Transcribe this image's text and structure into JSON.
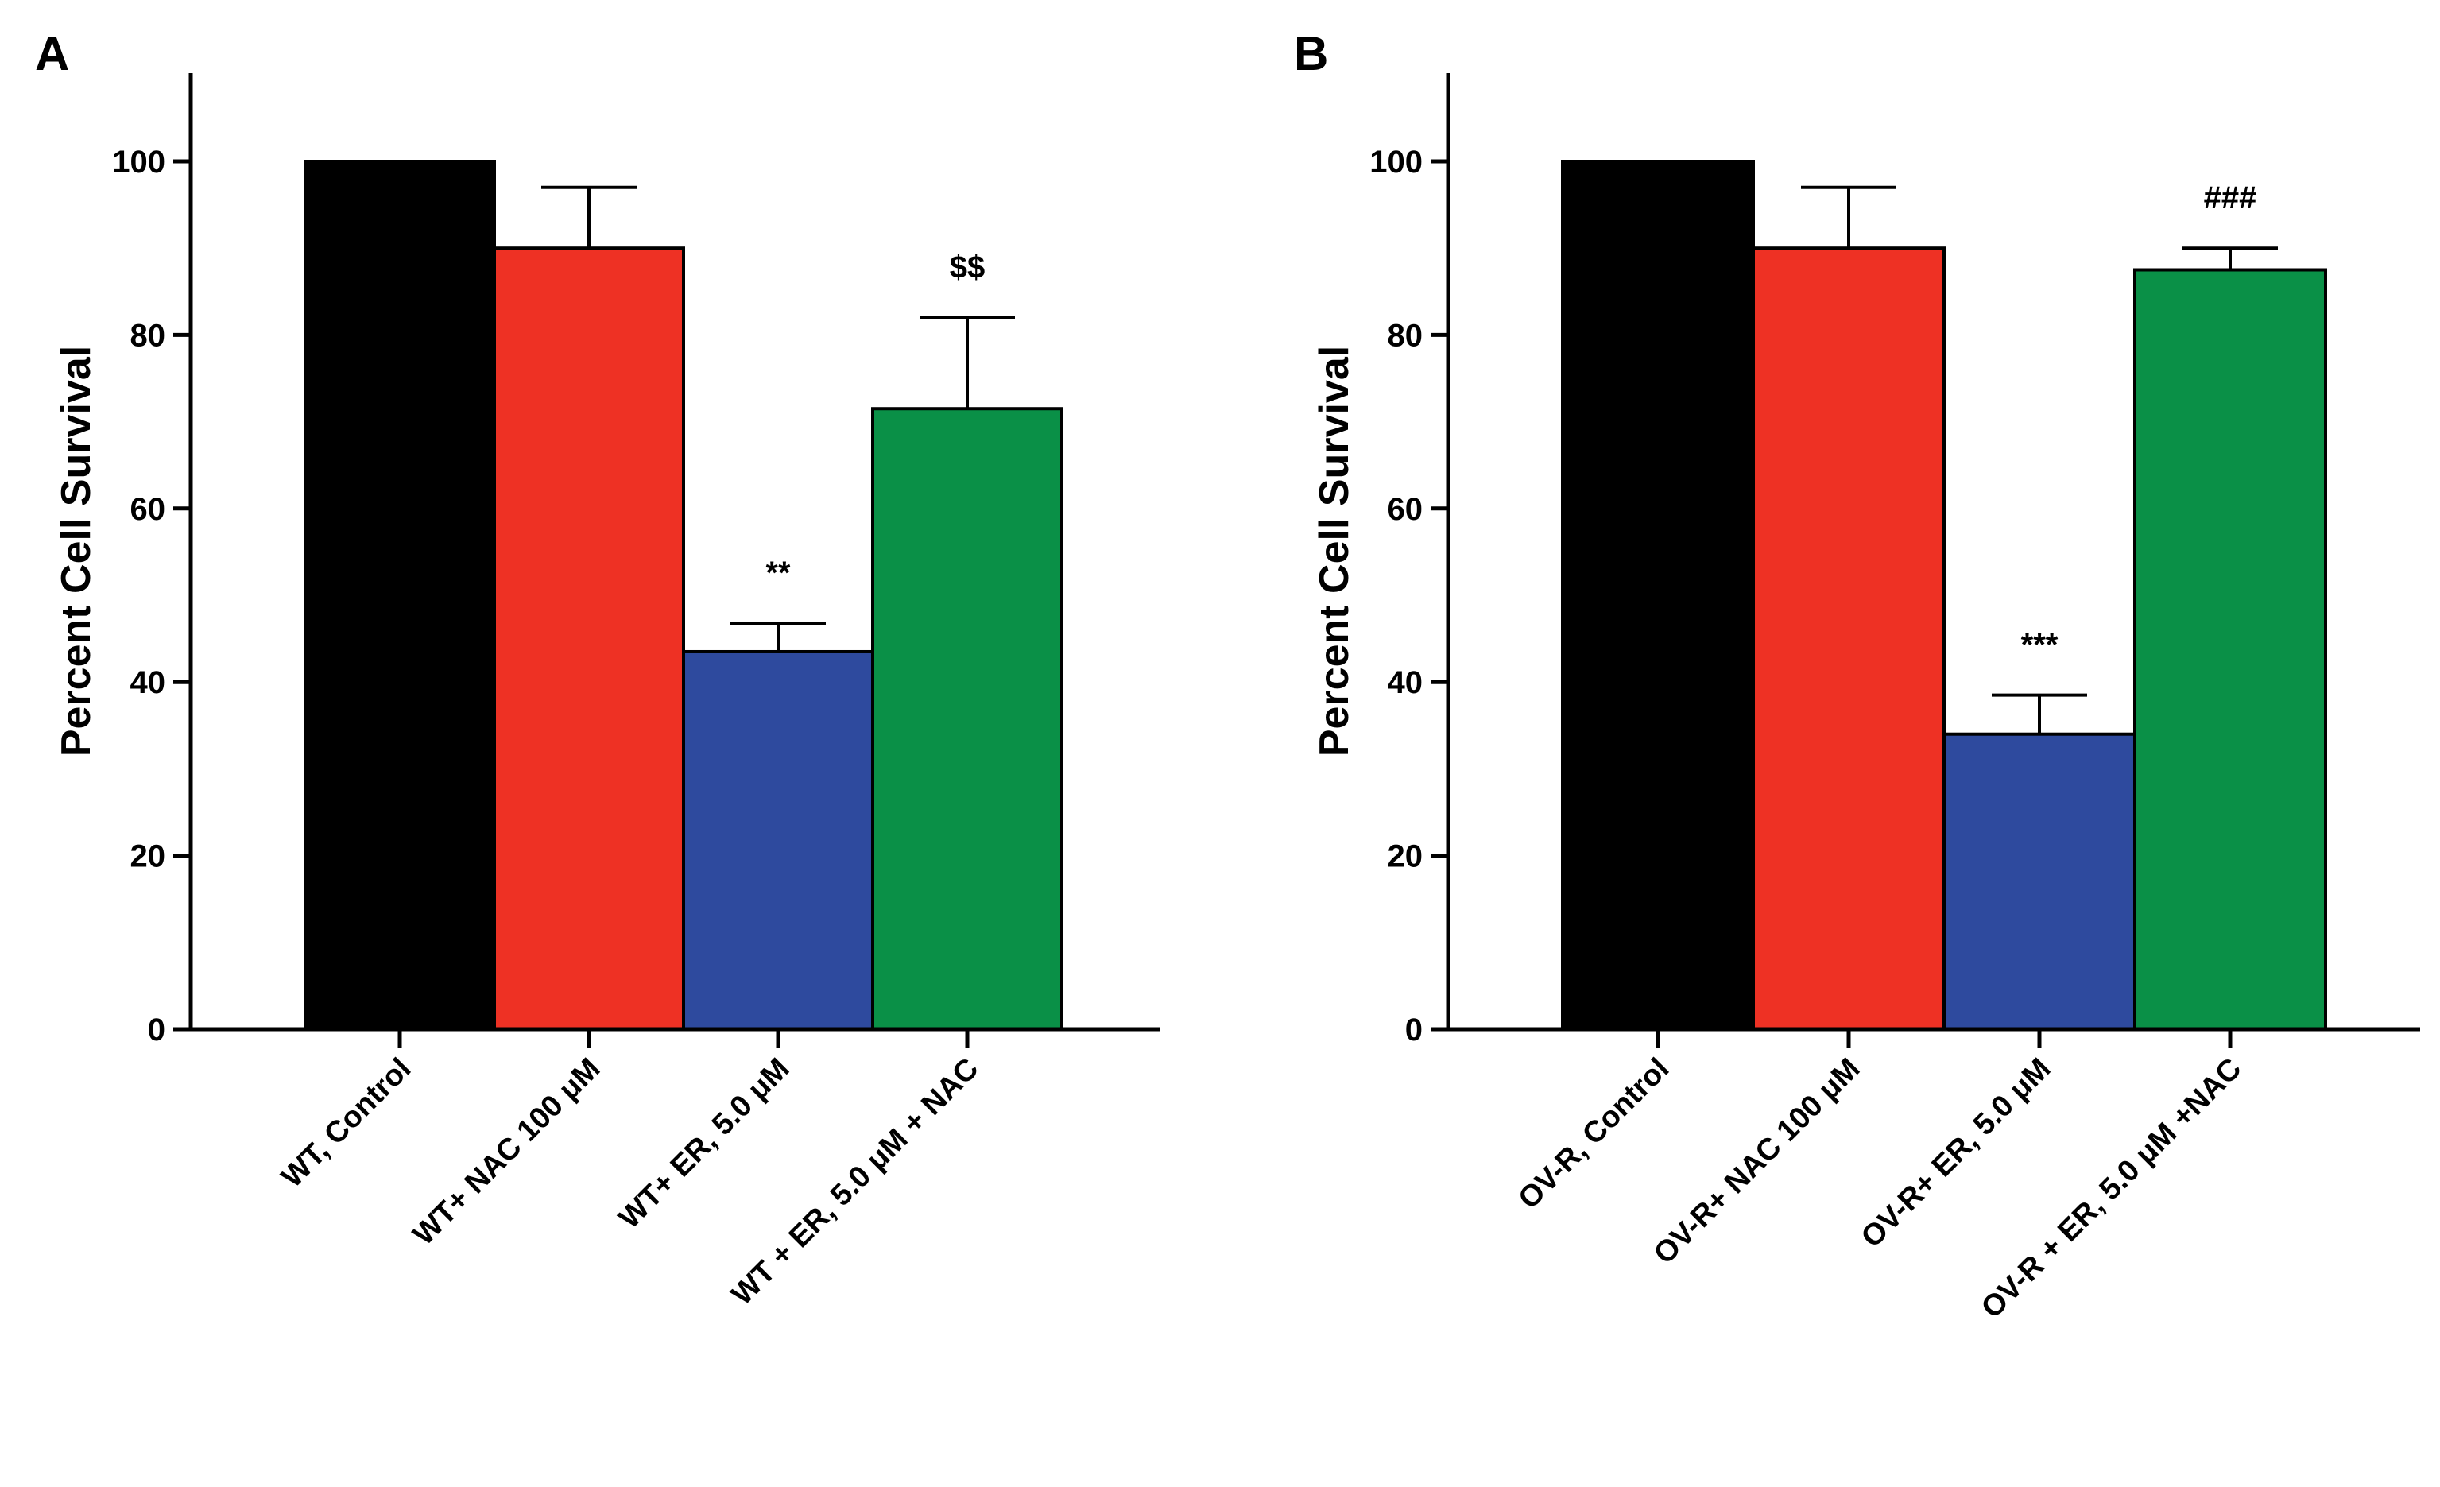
{
  "chart_data": [
    {
      "panel": "A",
      "type": "bar",
      "ylabel": "Percent Cell Survival",
      "ylim": [
        0,
        100
      ],
      "yticks": [
        "0",
        "20",
        "40",
        "60",
        "80",
        "100"
      ],
      "categories": [
        "WT, Control",
        "WT+ NAC 100 μM",
        "WT+ ER, 5.0 μM",
        "WT + ER, 5.0 μM + NAC"
      ],
      "values": [
        100,
        90,
        43.5,
        71.5
      ],
      "errors": [
        0,
        7,
        3.3,
        10.5
      ],
      "annotations": [
        "",
        "",
        "**",
        "$$"
      ],
      "colors": [
        "#000000",
        "#ee3124",
        "#2e4a9e",
        "#0a9047"
      ],
      "grid": false
    },
    {
      "panel": "B",
      "type": "bar",
      "ylabel": "Percent Cell Survival",
      "ylim": [
        0,
        100
      ],
      "yticks": [
        "0",
        "20",
        "40",
        "60",
        "80",
        "100"
      ],
      "categories": [
        "OV-R, Control",
        "OV-R+ NAC 100 μM",
        "OV-R+ ER, 5.0 μM",
        "OV-R + ER, 5.0 μM +NAC"
      ],
      "values": [
        100,
        90,
        34,
        87.5
      ],
      "errors": [
        0,
        7,
        4.5,
        2.5
      ],
      "annotations": [
        "",
        "",
        "***",
        "###"
      ],
      "colors": [
        "#000000",
        "#ee3124",
        "#2e4a9e",
        "#0a9047"
      ],
      "grid": false
    }
  ]
}
